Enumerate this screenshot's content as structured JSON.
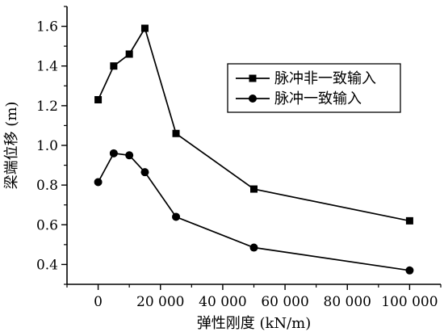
{
  "chart_data": {
    "type": "line",
    "xlabel": "弹性刚度 (kN/m)",
    "ylabel": "梁端位移 (m)",
    "xlim": [
      -10000,
      110000
    ],
    "ylim": [
      0.3,
      1.7
    ],
    "x_ticks": [
      0,
      20000,
      40000,
      60000,
      80000,
      100000
    ],
    "x_tick_labels": [
      "0",
      "20 000",
      "40 000",
      "60 000",
      "80 000",
      "100 000"
    ],
    "y_ticks": [
      0.4,
      0.6,
      0.8,
      1.0,
      1.2,
      1.4,
      1.6
    ],
    "y_tick_labels": [
      "0.4",
      "0.6",
      "0.8",
      "1.0",
      "1.2",
      "1.4",
      "1.6"
    ],
    "legend_position": "top-right",
    "grid": false,
    "series": [
      {
        "name": "脉冲非一致输入",
        "marker": "square",
        "color": "#000000",
        "x": [
          0,
          5000,
          10000,
          15000,
          25000,
          50000,
          100000
        ],
        "y": [
          1.23,
          1.4,
          1.46,
          1.59,
          1.06,
          0.78,
          0.62
        ]
      },
      {
        "name": "脉冲一致输入",
        "marker": "circle",
        "color": "#000000",
        "x": [
          0,
          5000,
          10000,
          15000,
          25000,
          50000,
          100000
        ],
        "y": [
          0.815,
          0.96,
          0.95,
          0.865,
          0.64,
          0.485,
          0.37
        ]
      }
    ]
  }
}
